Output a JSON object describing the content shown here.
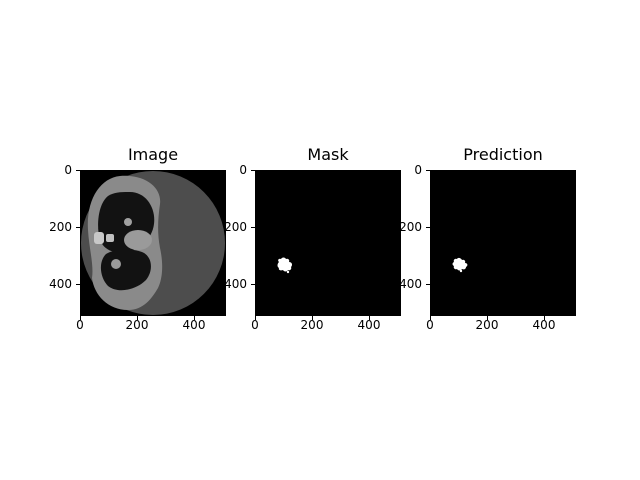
{
  "panels": [
    {
      "title": "Image",
      "xticks": [
        "0",
        "200",
        "400"
      ],
      "yticks": [
        "0",
        "200",
        "400"
      ],
      "axis_max": 512
    },
    {
      "title": "Mask",
      "xticks": [
        "0",
        "200",
        "400"
      ],
      "yticks": [
        "0",
        "200",
        "400"
      ],
      "axis_max": 512
    },
    {
      "title": "Prediction",
      "xticks": [
        "0",
        "200",
        "400"
      ],
      "yticks": [
        "0",
        "200",
        "400"
      ],
      "axis_max": 512
    }
  ],
  "colors": {
    "background": "#000000",
    "scan_field": "#4d4d4d",
    "tissue": "#8a8a8a",
    "lung": "#0f0f0f",
    "mask": "#ffffff"
  }
}
